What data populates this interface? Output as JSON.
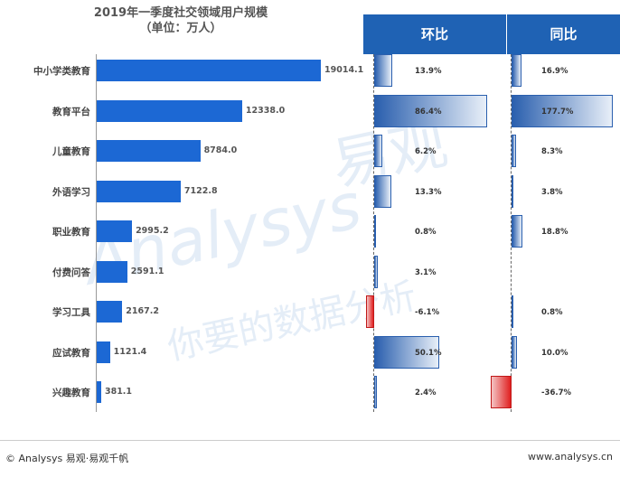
{
  "chart_data": {
    "type": "bar",
    "title_line1": "2019年一季度社交领域用户规模",
    "title_line2": "（单位：万人）",
    "categories": [
      "中小学类教育",
      "教育平台",
      "儿童教育",
      "外语学习",
      "职业教育",
      "付费问答",
      "学习工具",
      "应试教育",
      "兴趣教育"
    ],
    "values": [
      19014.1,
      12338.0,
      8784.0,
      7122.8,
      2995.2,
      2591.1,
      2167.2,
      1121.4,
      381.1
    ],
    "value_labels": [
      "19014.1",
      "12338.0",
      "8784.0",
      "7122.8",
      "2995.2",
      "2591.1",
      "2167.2",
      "1121.4",
      "381.1"
    ],
    "mom_header": "环比",
    "mom_values": [
      13.9,
      86.4,
      6.2,
      13.3,
      0.8,
      3.1,
      -6.1,
      50.1,
      2.4
    ],
    "mom_labels": [
      "13.9%",
      "86.4%",
      "6.2%",
      "13.3%",
      "0.8%",
      "3.1%",
      "-6.1%",
      "50.1%",
      "2.4%"
    ],
    "yoy_header": "同比",
    "yoy_values": [
      16.9,
      177.7,
      8.3,
      3.8,
      18.8,
      null,
      0.8,
      10.0,
      -36.7
    ],
    "yoy_labels": [
      "16.9%",
      "177.7%",
      "8.3%",
      "3.8%",
      "18.8%",
      "",
      "0.8%",
      "10.0%",
      "-36.7%"
    ],
    "colors": {
      "bar": "#1c68d4",
      "header": "#1f62b4",
      "positive": "#2a5fae",
      "negative": "#e02020"
    }
  },
  "watermark": {
    "text_en": "Analysys",
    "text_cn": "易观",
    "text_cn2": "你要的数据分析"
  },
  "footer": {
    "left": "© Analysys 易观·易观千帆",
    "right": "www.analysys.cn"
  }
}
